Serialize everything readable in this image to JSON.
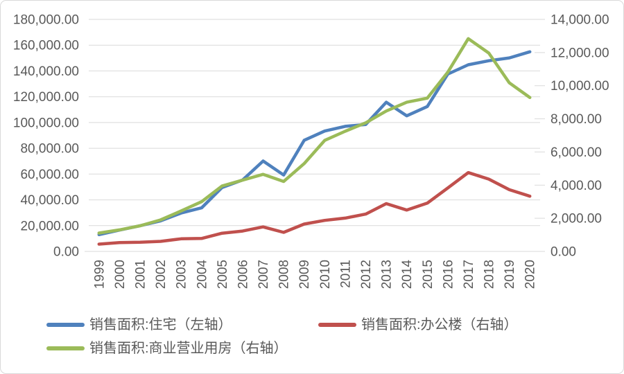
{
  "figure": {
    "background": "#FFFFFF",
    "border_color": "#D9D9D9"
  },
  "chart_data": {
    "type": "line",
    "title": "",
    "grid": true,
    "legend_position": "bottom",
    "x": [
      "1999",
      "2000",
      "2001",
      "2002",
      "2003",
      "2004",
      "2005",
      "2006",
      "2007",
      "2008",
      "2009",
      "2010",
      "2011",
      "2012",
      "2013",
      "2014",
      "2015",
      "2016",
      "2017",
      "2018",
      "2019",
      "2020"
    ],
    "axes": {
      "left": {
        "min": 0,
        "max": 180000,
        "step": 20000,
        "tick_labels": [
          "0.00",
          "20,000.00",
          "40,000.00",
          "60,000.00",
          "80,000.00",
          "100,000.00",
          "120,000.00",
          "140,000.00",
          "160,000.00",
          "180,000.00"
        ]
      },
      "right": {
        "min": 0,
        "max": 14000,
        "step": 2000,
        "tick_labels": [
          "0.00",
          "2,000.00",
          "4,000.00",
          "6,000.00",
          "8,000.00",
          "10,000.00",
          "12,000.00",
          "14,000.00"
        ]
      }
    },
    "series": [
      {
        "key": "residential",
        "name": "销售面积:住宅（左轴）",
        "axis": "left",
        "color": "#4F81BD",
        "values": [
          12998,
          16570,
          19939,
          23702,
          29779,
          33820,
          49588,
          55423,
          70136,
          59280,
          86185,
          93377,
          97030,
          98468,
          115723,
          105182,
          112406,
          137540,
          144789,
          147929,
          150144,
          154878
        ]
      },
      {
        "key": "office",
        "name": "销售面积:办公楼（右轴）",
        "axis": "right",
        "color": "#C0504D",
        "values": [
          439,
          536,
          552,
          604,
          762,
          780,
          1100,
          1230,
          1480,
          1150,
          1650,
          1872,
          2011,
          2254,
          2882,
          2495,
          2914,
          3826,
          4756,
          4363,
          3723,
          3332
        ]
      },
      {
        "key": "commercial",
        "name": "销售面积:商业营业用房（右轴）",
        "axis": "right",
        "color": "#9BBB59",
        "values": [
          1108,
          1300,
          1545,
          1900,
          2440,
          3000,
          3950,
          4300,
          4650,
          4220,
          5300,
          6700,
          7250,
          7759,
          8470,
          9000,
          9250,
          10812,
          12838,
          11971,
          10173,
          9287
        ]
      }
    ],
    "colors": {
      "gridline": "#D9D9D9",
      "axis_line": "#D0D0D0",
      "tick_text": "#595959"
    }
  }
}
